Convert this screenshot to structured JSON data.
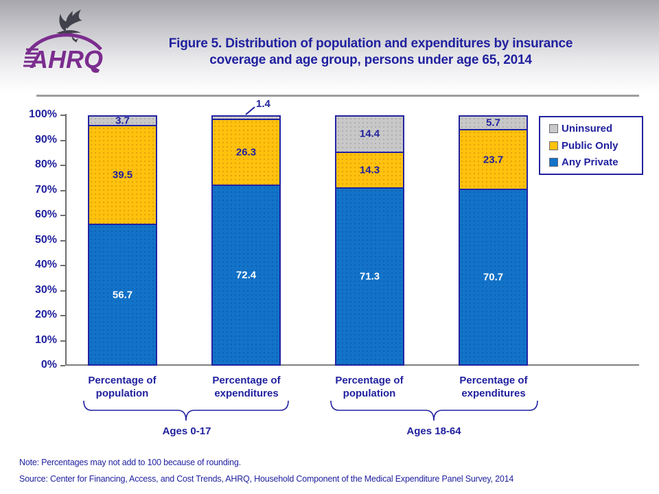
{
  "palette": {
    "navy_text": "#21219f",
    "bar_border": "#2323a0",
    "brand_purple": "#7b2d8e",
    "divider_gray": "#9d9da1"
  },
  "header": {
    "logo_text": "AHRQ",
    "title_line1": "Figure 5. Distribution of population and expenditures by insurance",
    "title_line2": "coverage and age group, persons under age 65, 2014"
  },
  "chart_data": {
    "type": "bar",
    "subtype": "stacked-percent",
    "title": "Figure 5. Distribution of population and expenditures by insurance coverage and age group, persons under age 65, 2014",
    "ylim": [
      0,
      100
    ],
    "grid": false,
    "legend_position": "upper-right",
    "ytick_labels": [
      "100%",
      "90%",
      "80%",
      "70%",
      "60%",
      "50%",
      "40%",
      "30%",
      "20%",
      "10%",
      "0%"
    ],
    "categories": [
      {
        "line1": "Percentage of",
        "line2": "population"
      },
      {
        "line1": "Percentage of",
        "line2": "expenditures"
      },
      {
        "line1": "Percentage of",
        "line2": "population"
      },
      {
        "line1": "Percentage of",
        "line2": "expenditures"
      }
    ],
    "series": [
      {
        "name": "Any Private",
        "color": "#1273c8",
        "dot_color": "rgba(9,70,150,0.40)",
        "label_color": "#ffffff",
        "values": [
          56.7,
          72.4,
          71.3,
          70.7
        ]
      },
      {
        "name": "Public Only",
        "color": "#ffc20e",
        "dot_color": "rgba(200,120,0,0.45)",
        "label_color": "#21219f",
        "values": [
          39.5,
          26.3,
          14.3,
          23.7
        ]
      },
      {
        "name": "Uninsured",
        "color": "#c8c8c8",
        "dot_color": "rgba(125,125,125,0.35)",
        "label_color": "#21219f",
        "values": [
          3.7,
          1.4,
          14.4,
          5.7
        ]
      }
    ],
    "callout": {
      "bar_index": 1,
      "series": "Uninsured",
      "value": "1.4"
    },
    "groups": [
      {
        "label": "Ages 0-17"
      },
      {
        "label": "Ages 18-64"
      }
    ],
    "legend": [
      {
        "label": "Uninsured",
        "color": "#c8c8c8"
      },
      {
        "label": "Public Only",
        "color": "#ffc20e"
      },
      {
        "label": "Any Private",
        "color": "#1273c8"
      }
    ]
  },
  "footer": {
    "note": "Note: Percentages may not add to 100 because of rounding.",
    "source": "Source: Center for Financing, Access, and Cost Trends, AHRQ, Household Component of the Medical Expenditure Panel Survey, 2014"
  }
}
